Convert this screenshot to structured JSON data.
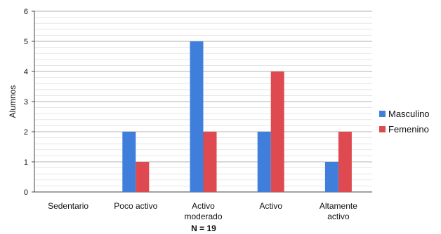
{
  "chart_data": {
    "type": "bar",
    "title": "",
    "xlabel": "",
    "ylabel": "Alumnos",
    "ylim": [
      0,
      6
    ],
    "yticks": [
      0,
      1,
      2,
      3,
      4,
      5,
      6
    ],
    "grid": true,
    "legend_position": "right",
    "categories": [
      "Sedentario",
      "Poco activo",
      "Activo moderado",
      "Activo",
      "Altamente activo"
    ],
    "category_lines": [
      [
        "Sedentario"
      ],
      [
        "Poco activo"
      ],
      [
        "Activo",
        "moderado"
      ],
      [
        "Activo"
      ],
      [
        "Altamente",
        "activo"
      ]
    ],
    "series": [
      {
        "name": "Masculino",
        "values": [
          0,
          2,
          5,
          2,
          1
        ],
        "color": "#3f7fdb"
      },
      {
        "name": "Femenino",
        "values": [
          0,
          1,
          2,
          4,
          2
        ],
        "color": "#de4a50"
      }
    ],
    "annotation": "N = 19"
  }
}
